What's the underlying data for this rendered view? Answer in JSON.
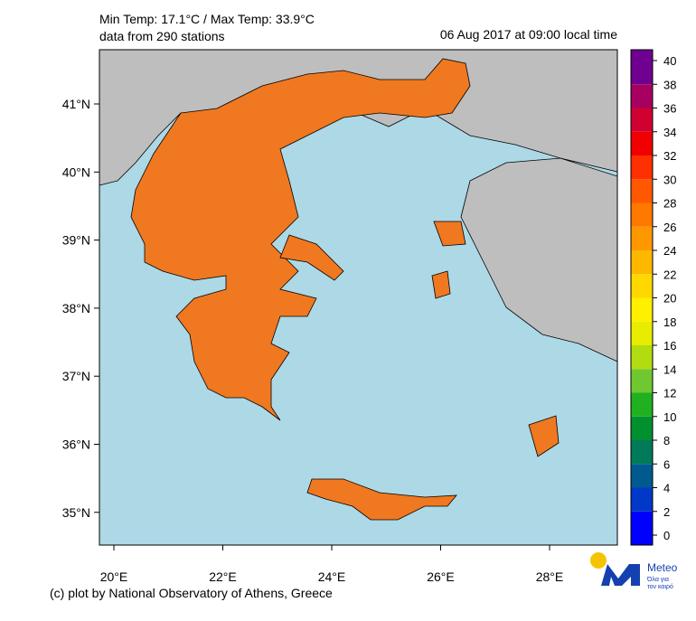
{
  "header": {
    "temp_range": "Min Temp: 17.1°C / Max Temp: 33.9°C",
    "stations": "data from 290 stations",
    "timestamp": "06 Aug 2017 at 09:00 local time"
  },
  "map": {
    "lat_labels": [
      "41°N",
      "40°N",
      "39°N",
      "38°N",
      "37°N",
      "36°N",
      "35°N"
    ],
    "lon_labels": [
      "20°E",
      "22°E",
      "24°E",
      "26°E",
      "28°E"
    ]
  },
  "colorbar": {
    "ticks": [
      0,
      2,
      4,
      6,
      8,
      10,
      12,
      14,
      16,
      18,
      20,
      22,
      24,
      26,
      28,
      30,
      32,
      34,
      36,
      38,
      40
    ],
    "colors": [
      "#0000ff",
      "#0038c8",
      "#005a90",
      "#007a58",
      "#009030",
      "#20b020",
      "#70c830",
      "#b0dc10",
      "#e8ec00",
      "#fff000",
      "#ffd800",
      "#ffb800",
      "#ff9800",
      "#ff7800",
      "#ff5800",
      "#ff3000",
      "#f00000",
      "#d00030",
      "#a80060",
      "#700090"
    ]
  },
  "footer": {
    "credit": "(c) plot by National Observatory of Athens, Greece"
  },
  "logo": {
    "name": "Meteo",
    "tagline_1": "Όλα για",
    "tagline_2": "τον καιρό"
  }
}
